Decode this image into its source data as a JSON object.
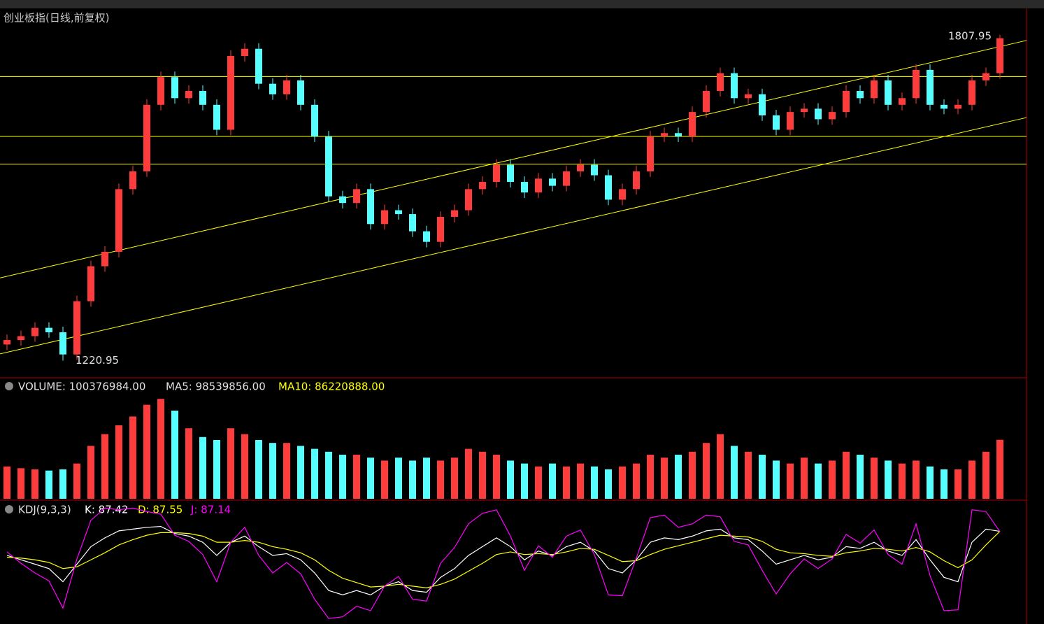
{
  "chart_data": [
    {
      "type": "candlestick",
      "title": "创业板指(日线,前复权)",
      "up_color": "#ff3c3c",
      "down_color": "#54ffff",
      "ylim": [
        1190,
        1852
      ],
      "xlim": [
        -0.5,
        72.9
      ],
      "hlines": [
        1733,
        1625,
        1575
      ],
      "hline_color": "#ffff00",
      "trendlines": [
        [
          [
            -0.5,
            1370
          ],
          [
            72.9,
            1798
          ]
        ],
        [
          [
            -0.5,
            1233
          ],
          [
            72.9,
            1659
          ]
        ]
      ],
      "open": [
        1250,
        1258,
        1265,
        1280,
        1272,
        1232,
        1328,
        1391,
        1417,
        1530,
        1562,
        1682,
        1732,
        1694,
        1707,
        1682,
        1637,
        1770,
        1783,
        1720,
        1701,
        1726,
        1682,
        1625,
        1517,
        1505,
        1530,
        1467,
        1492,
        1485,
        1454,
        1435,
        1480,
        1492,
        1530,
        1543,
        1574,
        1543,
        1524,
        1549,
        1536,
        1562,
        1574,
        1555,
        1511,
        1530,
        1562,
        1625,
        1631,
        1625,
        1669,
        1707,
        1739,
        1694,
        1701,
        1663,
        1637,
        1669,
        1675,
        1656,
        1669,
        1707,
        1694,
        1726,
        1682,
        1694,
        1745,
        1682,
        1675,
        1682,
        1726,
        1739
      ],
      "close": [
        1258,
        1265,
        1280,
        1272,
        1232,
        1328,
        1391,
        1417,
        1530,
        1562,
        1682,
        1732,
        1694,
        1707,
        1682,
        1637,
        1770,
        1783,
        1720,
        1701,
        1726,
        1682,
        1625,
        1517,
        1505,
        1530,
        1467,
        1492,
        1485,
        1454,
        1435,
        1480,
        1492,
        1530,
        1543,
        1574,
        1543,
        1524,
        1549,
        1536,
        1562,
        1574,
        1555,
        1511,
        1530,
        1562,
        1625,
        1631,
        1625,
        1669,
        1707,
        1739,
        1694,
        1701,
        1663,
        1637,
        1669,
        1675,
        1656,
        1669,
        1707,
        1694,
        1726,
        1682,
        1694,
        1745,
        1682,
        1675,
        1682,
        1726,
        1739,
        1802
      ],
      "high": [
        1268,
        1275,
        1290,
        1290,
        1282,
        1338,
        1401,
        1427,
        1540,
        1572,
        1692,
        1742,
        1742,
        1717,
        1717,
        1692,
        1780,
        1793,
        1793,
        1730,
        1736,
        1736,
        1692,
        1635,
        1527,
        1540,
        1540,
        1502,
        1502,
        1495,
        1464,
        1490,
        1502,
        1540,
        1553,
        1584,
        1584,
        1553,
        1559,
        1559,
        1572,
        1584,
        1584,
        1565,
        1540,
        1572,
        1635,
        1641,
        1641,
        1679,
        1717,
        1749,
        1749,
        1711,
        1711,
        1673,
        1679,
        1685,
        1685,
        1679,
        1717,
        1717,
        1736,
        1736,
        1704,
        1755,
        1755,
        1692,
        1692,
        1736,
        1749,
        1807.95
      ],
      "low": [
        1240,
        1248,
        1255,
        1262,
        1220.95,
        1222,
        1318,
        1381,
        1407,
        1520,
        1552,
        1672,
        1684,
        1684,
        1672,
        1627,
        1627,
        1760,
        1710,
        1691,
        1691,
        1672,
        1615,
        1507,
        1495,
        1495,
        1457,
        1457,
        1475,
        1444,
        1425,
        1425,
        1470,
        1482,
        1520,
        1533,
        1533,
        1514,
        1514,
        1526,
        1526,
        1552,
        1545,
        1501,
        1501,
        1520,
        1552,
        1615,
        1615,
        1615,
        1659,
        1697,
        1684,
        1684,
        1653,
        1627,
        1627,
        1659,
        1646,
        1646,
        1659,
        1684,
        1684,
        1672,
        1672,
        1684,
        1672,
        1665,
        1665,
        1672,
        1716,
        1729
      ]
    },
    {
      "type": "bar",
      "ylim": [
        0,
        200000000
      ],
      "ma_labels": [
        "MA5: 98539856.00",
        "MA10: 86220888.00"
      ],
      "series": [
        {
          "name": "VOLUME: 100376984.00",
          "values": [
            55000000,
            52000000,
            50000000,
            48000000,
            50000000,
            60000000,
            90000000,
            110000000,
            125000000,
            140000000,
            160000000,
            170000000,
            150000000,
            120000000,
            105000000,
            100000000,
            120000000,
            110000000,
            100000000,
            95000000,
            95000000,
            90000000,
            85000000,
            80000000,
            75000000,
            75000000,
            70000000,
            65000000,
            70000000,
            65000000,
            70000000,
            65000000,
            70000000,
            85000000,
            80000000,
            75000000,
            65000000,
            60000000,
            55000000,
            60000000,
            55000000,
            60000000,
            55000000,
            50000000,
            55000000,
            60000000,
            75000000,
            70000000,
            75000000,
            80000000,
            95000000,
            110000000,
            90000000,
            80000000,
            75000000,
            65000000,
            60000000,
            70000000,
            60000000,
            65000000,
            80000000,
            75000000,
            70000000,
            65000000,
            60000000,
            65000000,
            55000000,
            50000000,
            50000000,
            65000000,
            80000000,
            100376984
          ]
        }
      ]
    },
    {
      "type": "line",
      "title": "KDJ(9,3,3)",
      "ylim": [
        -15,
        115
      ],
      "series": [
        {
          "name": "K: 87.42",
          "color": "#ffffff",
          "values": [
            60,
            55,
            50,
            45,
            30,
            50,
            70,
            80,
            88,
            90,
            92,
            93,
            85,
            82,
            75,
            60,
            75,
            82,
            70,
            60,
            62,
            55,
            40,
            20,
            15,
            20,
            15,
            25,
            30,
            20,
            18,
            35,
            45,
            60,
            70,
            80,
            70,
            55,
            65,
            60,
            70,
            75,
            65,
            45,
            40,
            55,
            75,
            80,
            78,
            82,
            88,
            90,
            80,
            78,
            65,
            50,
            55,
            60,
            55,
            58,
            70,
            68,
            75,
            65,
            60,
            78,
            55,
            35,
            30,
            75,
            90,
            87.42
          ]
        },
        {
          "name": "D: 87.55",
          "color": "#ffff00",
          "values": [
            58,
            57,
            55,
            52,
            45,
            47,
            55,
            63,
            72,
            78,
            83,
            86,
            86,
            85,
            82,
            75,
            75,
            77,
            75,
            70,
            67,
            63,
            55,
            43,
            34,
            29,
            24,
            25,
            27,
            25,
            23,
            27,
            33,
            42,
            51,
            61,
            64,
            61,
            62,
            61,
            64,
            68,
            67,
            60,
            53,
            54,
            61,
            67,
            71,
            75,
            79,
            83,
            82,
            81,
            76,
            67,
            63,
            62,
            60,
            59,
            63,
            65,
            68,
            67,
            65,
            69,
            64,
            54,
            46,
            55,
            72,
            87.55
          ]
        },
        {
          "name": "J: 87.14",
          "color": "#ff00ff",
          "values": [
            64,
            51,
            40,
            31,
            0,
            56,
            100,
            114,
            112,
            114,
            110,
            107,
            83,
            76,
            61,
            30,
            75,
            92,
            60,
            40,
            52,
            39,
            10,
            -12,
            -10,
            2,
            -3,
            25,
            36,
            10,
            8,
            51,
            69,
            96,
            108,
            112,
            82,
            43,
            71,
            58,
            82,
            89,
            61,
            15,
            14,
            57,
            103,
            106,
            92,
            96,
            106,
            104,
            76,
            72,
            43,
            16,
            39,
            56,
            45,
            56,
            84,
            74,
            89,
            61,
            50,
            96,
            37,
            -3,
            -2,
            112,
            110,
            87.14
          ]
        }
      ]
    }
  ]
}
